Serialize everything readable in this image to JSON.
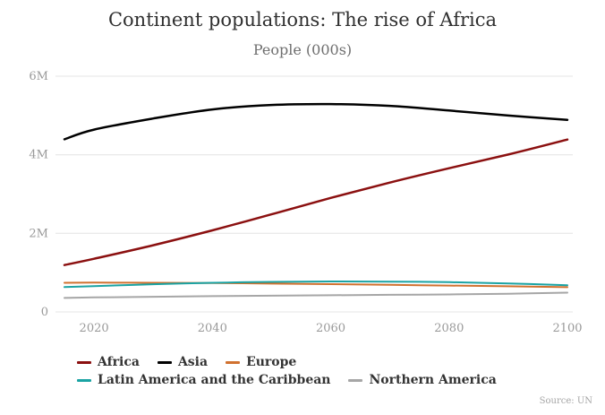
{
  "title": "Continent populations: The rise of Africa",
  "subtitle": "People (000s)",
  "source": "Source: UN",
  "chart_data": {
    "type": "line",
    "title": "Continent populations: The rise of Africa",
    "subtitle": "People (000s)",
    "xlabel": "",
    "ylabel": "People (000s)",
    "xlim": [
      2015,
      2100
    ],
    "ylim": [
      0,
      6000000
    ],
    "grid": "horizontal",
    "legend_position": "bottom",
    "x_ticks": [
      2020,
      2040,
      2060,
      2080,
      2100
    ],
    "y_ticks": [
      {
        "value": 0,
        "label": "0"
      },
      {
        "value": 2000000,
        "label": "2M"
      },
      {
        "value": 4000000,
        "label": "4M"
      },
      {
        "value": 6000000,
        "label": "6M"
      }
    ],
    "x": [
      2015,
      2020,
      2030,
      2040,
      2050,
      2060,
      2070,
      2080,
      2090,
      2100
    ],
    "series": [
      {
        "id": "africa",
        "name": "Africa",
        "color": "#8b1010",
        "width": 2.5,
        "values": [
          1194000,
          1353000,
          1698000,
          2077000,
          2485000,
          2901000,
          3293000,
          3658000,
          4006000,
          4387000
        ]
      },
      {
        "id": "asia",
        "name": "Asia",
        "color": "#000000",
        "width": 2.5,
        "values": [
          4393000,
          4641000,
          4923000,
          5154000,
          5267000,
          5290000,
          5246000,
          5127000,
          4998000,
          4889000
        ]
      },
      {
        "id": "europe",
        "name": "Europe",
        "color": "#d0712f",
        "width": 2,
        "values": [
          741000,
          747000,
          741000,
          735000,
          722000,
          707000,
          689000,
          671000,
          652000,
          630000
        ]
      },
      {
        "id": "latin-america",
        "name": "Latin America and the Caribbean",
        "color": "#1aa3a3",
        "width": 2,
        "values": [
          632000,
          654000,
          706000,
          741000,
          765000,
          776000,
          771000,
          757000,
          726000,
          680000
        ]
      },
      {
        "id": "northern-america",
        "name": "Northern America",
        "color": "#a6a6a6",
        "width": 2,
        "values": [
          356000,
          369000,
          385000,
          401000,
          413000,
          425000,
          435000,
          445000,
          464000,
          491000
        ]
      }
    ]
  }
}
